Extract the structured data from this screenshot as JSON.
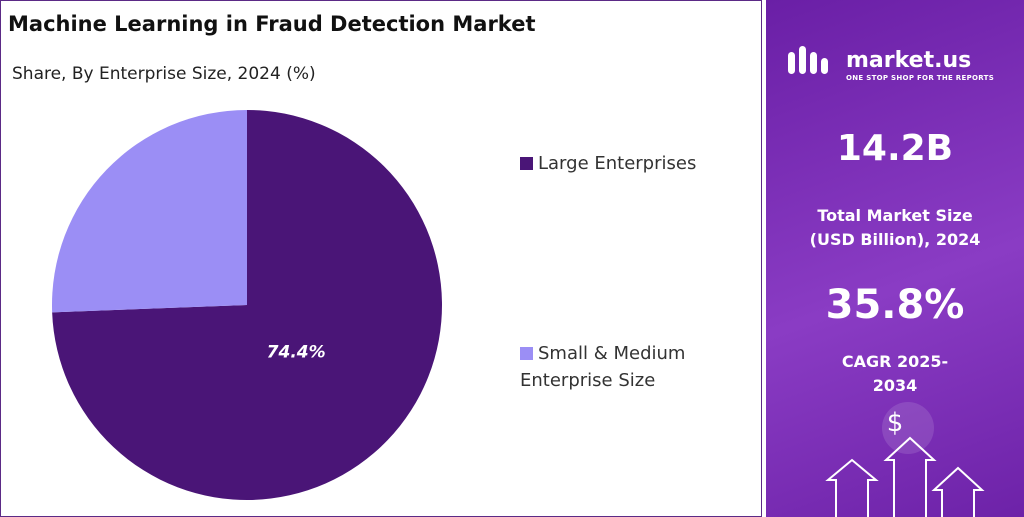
{
  "chart_data": {
    "type": "pie",
    "title": "Machine Learning in Fraud Detection Market",
    "subtitle": "Share, By Enterprise Size, 2024 (%)",
    "categories": [
      "Large Enterprises",
      "Small & Medium Enterprise Size"
    ],
    "values": [
      74.4,
      25.6
    ],
    "value_labels": [
      "74.4%",
      null
    ],
    "colors": [
      "#4a1577",
      "#9b8ef5"
    ],
    "start_angle": -90,
    "direction": "clockwise",
    "legend": "right"
  },
  "panel": {
    "brand": "market.us",
    "tagline": "ONE STOP SHOP FOR THE REPORTS",
    "market_size": "14.2B",
    "market_size_label": "Total Market Size (USD Billion), 2024",
    "cagr": "35.8%",
    "cagr_label": "CAGR 2025-2034",
    "icon": "$"
  }
}
